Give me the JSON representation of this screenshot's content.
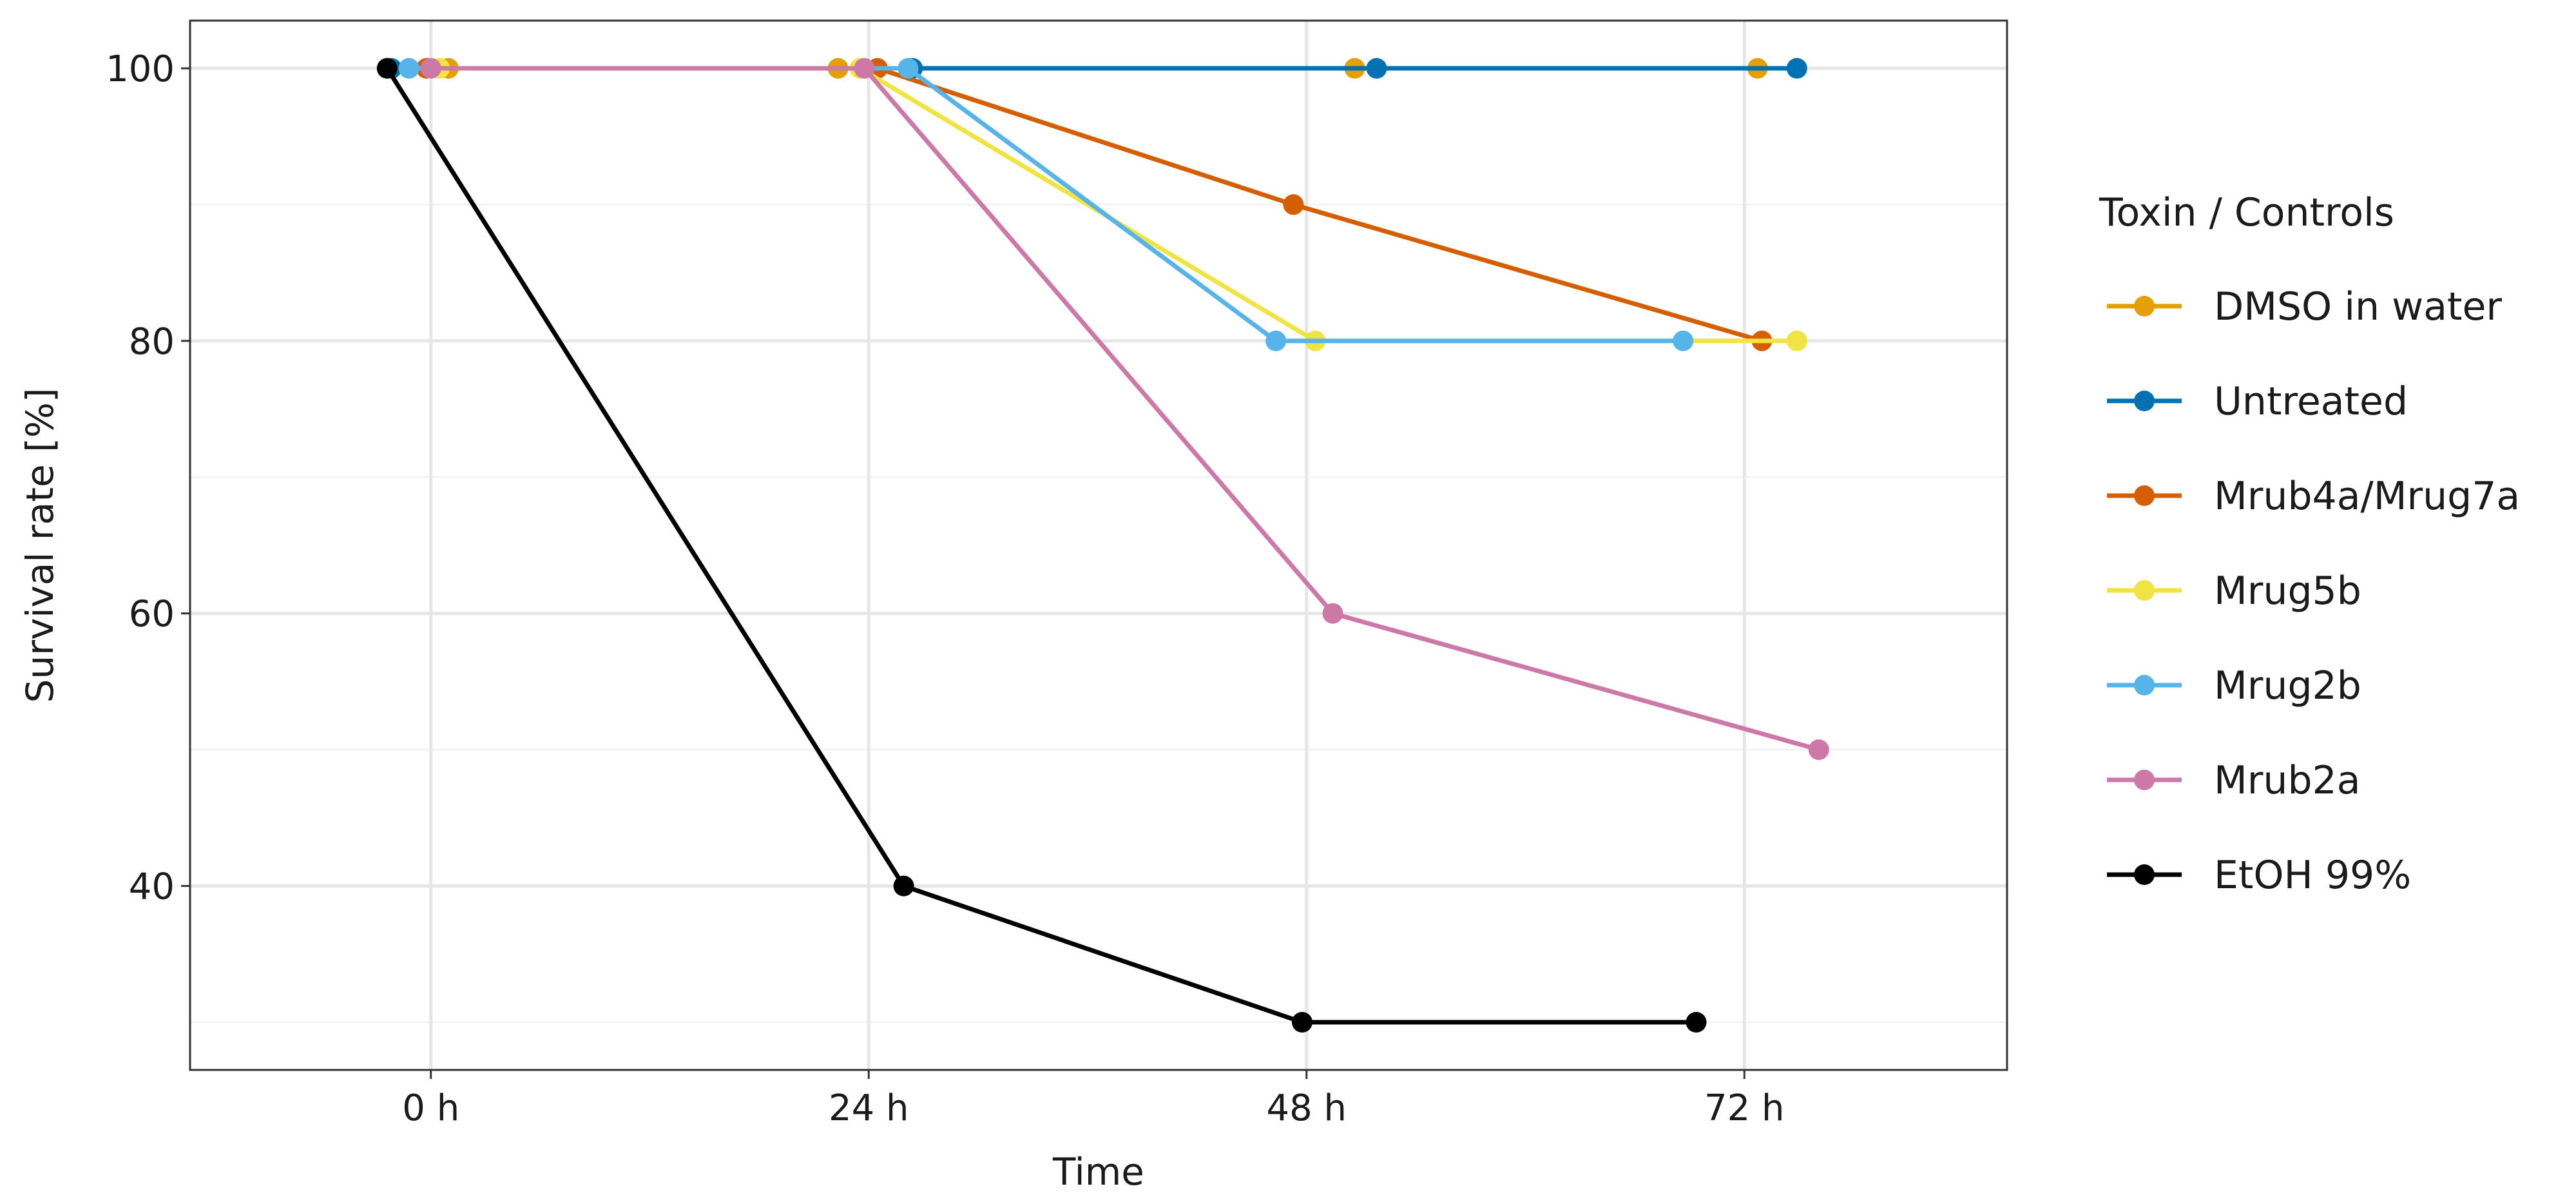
{
  "chart_data": {
    "type": "line",
    "title": "",
    "xlabel": "Time",
    "ylabel": "Survival rate [%]",
    "categories": [
      "0 h",
      "24 h",
      "48 h",
      "72 h"
    ],
    "x_tick_labels": [
      "0 h",
      "24 h",
      "48 h",
      "72 h"
    ],
    "y_ticks": [
      40,
      60,
      80,
      100
    ],
    "ylim": [
      26.5,
      103.5
    ],
    "xlim": [
      -0.55,
      3.6
    ],
    "grid": true,
    "legend": {
      "title": "Toxin / Controls",
      "placement": "right"
    },
    "series": [
      {
        "name": "DMSO in water",
        "color": "#E69F00",
        "x": [
          0.04,
          0.93,
          2.11,
          3.03
        ],
        "values": [
          100,
          100,
          100,
          100
        ]
      },
      {
        "name": "Untreated",
        "color": "#0072B2",
        "x": [
          -0.09,
          1.1,
          2.16,
          3.12
        ],
        "values": [
          100,
          100,
          100,
          100
        ]
      },
      {
        "name": "Mrub4a/Mrug7a",
        "color": "#D55E00",
        "x": [
          -0.01,
          1.02,
          1.97,
          3.04
        ],
        "values": [
          100,
          100,
          90,
          80
        ]
      },
      {
        "name": "Mrug5b",
        "color": "#F0E442",
        "x": [
          0.02,
          0.98,
          2.02,
          3.12
        ],
        "values": [
          100,
          100,
          80,
          80
        ]
      },
      {
        "name": "Mrug2b",
        "color": "#56B4E9",
        "x": [
          -0.05,
          1.09,
          1.93,
          2.86
        ],
        "values": [
          100,
          100,
          80,
          80
        ]
      },
      {
        "name": "Mrub2a",
        "color": "#CC79A7",
        "x": [
          0.0,
          0.99,
          2.06,
          3.17
        ],
        "values": [
          100,
          100,
          60,
          50
        ]
      },
      {
        "name": "EtOH 99%",
        "color": "#000000",
        "x": [
          -0.1,
          1.08,
          1.99,
          2.89
        ],
        "values": [
          100,
          40,
          30,
          30
        ]
      }
    ]
  }
}
